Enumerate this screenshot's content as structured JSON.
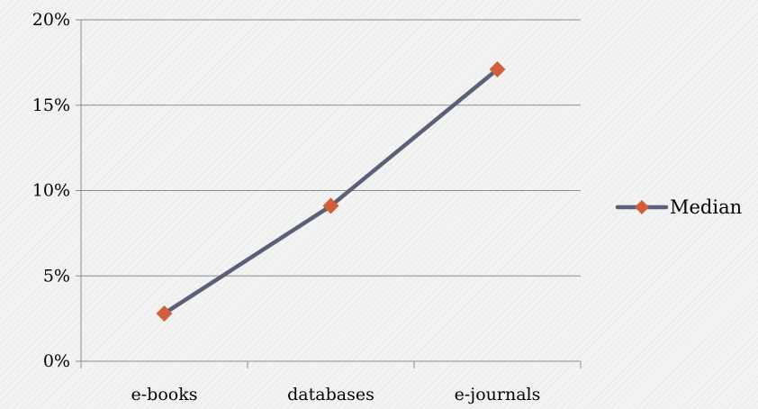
{
  "chart_data": {
    "type": "line",
    "categories": [
      "e-books",
      "databases",
      "e-journals"
    ],
    "series": [
      {
        "name": "Median",
        "values": [
          2.8,
          9.1,
          17.1
        ],
        "line_color": "#5a6078",
        "marker_color": "#d0603a",
        "marker": "diamond"
      }
    ],
    "ylim": [
      0,
      20
    ],
    "yticks": [
      0,
      5,
      10,
      15,
      20
    ],
    "ytick_labels": [
      "0%",
      "5%",
      "10%",
      "15%",
      "20%"
    ],
    "y_unit": "%",
    "grid": true,
    "legend_position": "right",
    "title": "",
    "xlabel": "",
    "ylabel": ""
  }
}
